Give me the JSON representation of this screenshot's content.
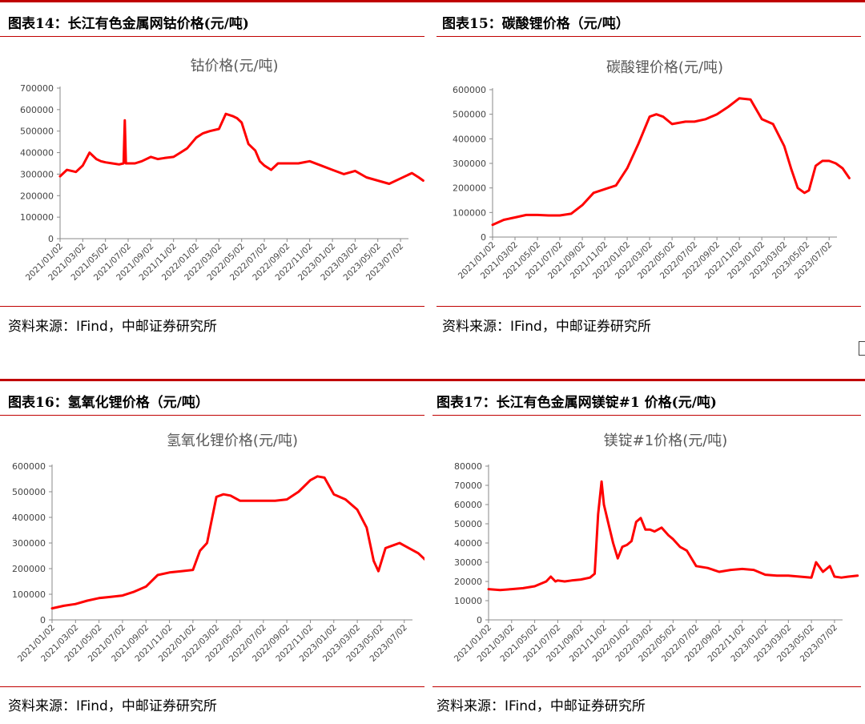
{
  "panels": [
    {
      "fig_title": "图表14：长江有色金属网钴价格(元/吨)",
      "source": "资料来源：IFind，中邮证券研究所"
    },
    {
      "fig_title": "图表15：碳酸锂价格（元/吨）",
      "source": "资料来源：IFind，中邮证券研究所"
    },
    {
      "fig_title": "图表16：氢氧化锂价格（元/吨）",
      "source": "资料来源：IFind，中邮证券研究所"
    },
    {
      "fig_title": "图表17：长江有色金属网镁锭#1 价格(元/吨)",
      "source": "资料来源：IFind，中邮证券研究所"
    }
  ],
  "chart_data": [
    {
      "type": "line",
      "title": "钴价格(元/吨)",
      "x_tick_labels": [
        "2021/01/02",
        "2021/03/02",
        "2021/05/02",
        "2021/07/02",
        "2021/09/02",
        "2021/11/02",
        "2022/01/02",
        "2022/03/02",
        "2022/05/02",
        "2022/07/02",
        "2022/09/02",
        "2022/11/02",
        "2023/01/02",
        "2023/03/02",
        "2023/05/02",
        "2023/07/02"
      ],
      "y_tick_labels": [
        "700000",
        "600000",
        "500000",
        "400000",
        "300000",
        "200000",
        "100000",
        "0"
      ],
      "ylim": [
        0,
        700000
      ],
      "color": "#ff0000",
      "series": [
        {
          "x": [
            0,
            0.3,
            0.7,
            1,
            1.3,
            1.6,
            1.8,
            2,
            2.3,
            2.6,
            2.8,
            2.85,
            2.9,
            3,
            3.3,
            3.6,
            4,
            4.3,
            4.6,
            5,
            5.3,
            5.6,
            6,
            6.3,
            6.6,
            7,
            7.3,
            7.6,
            7.8,
            8,
            8.3,
            8.6,
            8.8,
            9,
            9.3,
            9.6,
            10,
            10.5,
            11,
            11.5,
            12,
            12.5,
            13,
            13.5,
            14,
            14.5,
            15,
            15.5,
            15.8,
            16
          ],
          "y": [
            290000,
            320000,
            310000,
            340000,
            400000,
            370000,
            360000,
            355000,
            350000,
            345000,
            350000,
            550000,
            350000,
            350000,
            350000,
            360000,
            380000,
            370000,
            375000,
            380000,
            400000,
            420000,
            470000,
            490000,
            500000,
            510000,
            580000,
            570000,
            560000,
            540000,
            440000,
            410000,
            360000,
            340000,
            320000,
            350000,
            350000,
            350000,
            360000,
            340000,
            320000,
            300000,
            315000,
            285000,
            270000,
            255000,
            280000,
            305000,
            285000,
            270000
          ]
        }
      ]
    },
    {
      "type": "line",
      "title": "碳酸锂价格(元/吨)",
      "x_tick_labels": [
        "2021/01/02",
        "2021/03/02",
        "2021/05/02",
        "2021/07/02",
        "2021/09/02",
        "2021/11/02",
        "2022/01/02",
        "2022/03/02",
        "2022/05/02",
        "2022/07/02",
        "2022/09/02",
        "2022/11/02",
        "2023/01/02",
        "2023/03/02",
        "2023/05/02",
        "2023/07/02"
      ],
      "y_tick_labels": [
        "600000",
        "500000",
        "400000",
        "300000",
        "200000",
        "100000",
        "0"
      ],
      "ylim": [
        0,
        600000
      ],
      "color": "#ff0000",
      "series": [
        {
          "x": [
            0,
            0.5,
            1,
            1.5,
            2,
            2.5,
            3,
            3.5,
            4,
            4.5,
            5,
            5.5,
            6,
            6.5,
            7,
            7.3,
            7.6,
            8,
            8.3,
            8.6,
            9,
            9.5,
            10,
            10.5,
            11,
            11.5,
            12,
            12.5,
            13,
            13.3,
            13.6,
            13.9,
            14.1,
            14.4,
            14.7,
            15,
            15.3,
            15.6,
            15.9
          ],
          "y": [
            50000,
            70000,
            80000,
            90000,
            90000,
            88000,
            88000,
            95000,
            130000,
            180000,
            195000,
            210000,
            280000,
            380000,
            490000,
            500000,
            490000,
            460000,
            465000,
            470000,
            470000,
            480000,
            500000,
            530000,
            565000,
            560000,
            480000,
            460000,
            370000,
            280000,
            200000,
            180000,
            190000,
            290000,
            310000,
            310000,
            300000,
            280000,
            240000
          ]
        }
      ]
    },
    {
      "type": "line",
      "title": "氢氧化锂价格(元/吨)",
      "x_tick_labels": [
        "2021/01/02",
        "2021/03/02",
        "2021/05/02",
        "2021/07/02",
        "2021/09/02",
        "2021/11/02",
        "2022/01/02",
        "2022/03/02",
        "2022/05/02",
        "2022/07/02",
        "2022/09/02",
        "2022/11/02",
        "2023/01/02",
        "2023/03/02",
        "2023/05/02",
        "2023/07/02"
      ],
      "y_tick_labels": [
        "600000",
        "500000",
        "400000",
        "300000",
        "200000",
        "100000",
        "0"
      ],
      "ylim": [
        0,
        600000
      ],
      "color": "#ff0000",
      "series": [
        {
          "x": [
            0,
            0.5,
            1,
            1.5,
            2,
            2.5,
            3,
            3.5,
            4,
            4.5,
            5,
            5.5,
            6,
            6.3,
            6.6,
            7,
            7.3,
            7.6,
            8,
            8.5,
            9,
            9.5,
            10,
            10.5,
            11,
            11.3,
            11.6,
            12,
            12.5,
            13,
            13.4,
            13.7,
            13.9,
            14.2,
            14.5,
            14.8,
            15.2,
            15.6,
            16
          ],
          "y": [
            45000,
            55000,
            62000,
            75000,
            85000,
            90000,
            95000,
            110000,
            130000,
            175000,
            185000,
            190000,
            195000,
            270000,
            300000,
            480000,
            490000,
            485000,
            465000,
            465000,
            465000,
            465000,
            470000,
            500000,
            545000,
            560000,
            555000,
            490000,
            470000,
            430000,
            360000,
            230000,
            190000,
            280000,
            290000,
            300000,
            280000,
            260000,
            225000
          ]
        }
      ]
    },
    {
      "type": "line",
      "title": "镁锭#1价格(元/吨)",
      "x_tick_labels": [
        "2021/01/02",
        "2021/03/02",
        "2021/05/02",
        "2021/07/02",
        "2021/09/02",
        "2021/11/02",
        "2022/01/02",
        "2022/03/02",
        "2022/05/02",
        "2022/07/02",
        "2022/09/02",
        "2022/11/02",
        "2023/01/02",
        "2023/03/02",
        "2023/05/02",
        "2023/07/02"
      ],
      "y_tick_labels": [
        "80000",
        "70000",
        "60000",
        "50000",
        "40000",
        "30000",
        "20000",
        "10000",
        "0"
      ],
      "ylim": [
        0,
        80000
      ],
      "color": "#ff0000",
      "series": [
        {
          "x": [
            0,
            0.5,
            1,
            1.5,
            2,
            2.5,
            2.7,
            2.9,
            3,
            3.3,
            3.6,
            4,
            4.4,
            4.6,
            4.75,
            4.9,
            5,
            5.2,
            5.4,
            5.6,
            5.8,
            6,
            6.2,
            6.4,
            6.6,
            6.8,
            7,
            7.2,
            7.5,
            7.8,
            8,
            8.3,
            8.6,
            9,
            9.5,
            10,
            10.5,
            11,
            11.5,
            12,
            12.5,
            13,
            13.5,
            14,
            14.2,
            14.5,
            14.8,
            15,
            15.3,
            15.6,
            16
          ],
          "y": [
            16000,
            15500,
            16000,
            16500,
            17500,
            20000,
            22500,
            20000,
            20500,
            20000,
            20500,
            21000,
            22000,
            24000,
            55000,
            72000,
            60000,
            50000,
            40000,
            32000,
            38000,
            39000,
            41000,
            51000,
            53000,
            47000,
            47000,
            46000,
            48000,
            44000,
            42000,
            38000,
            36000,
            28000,
            27000,
            25000,
            26000,
            26500,
            26000,
            23500,
            23000,
            23000,
            22500,
            22000,
            30000,
            25000,
            28000,
            22500,
            22000,
            22500,
            23000
          ]
        }
      ]
    }
  ]
}
